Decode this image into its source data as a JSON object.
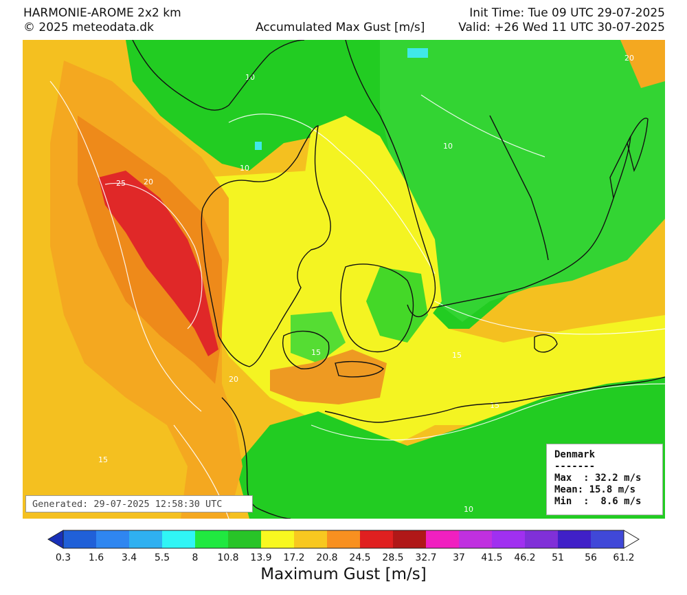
{
  "header": {
    "model": "HARMONIE-AROME 2x2 km",
    "copyright": "© 2025 meteodata.dk",
    "field": "Accumulated Max Gust [m/s]",
    "init_time": "Init Time: Tue 09 UTC 29-07-2025",
    "valid_time": "Valid: +26 Wed 11 UTC 30-07-2025"
  },
  "generated": "Generated: 29-07-2025 12:58:30 UTC",
  "stats": {
    "region": "Denmark",
    "separator": "-------",
    "max": "Max  : 32.2 m/s",
    "mean": "Mean: 15.8 m/s",
    "min": "Min  :  8.6 m/s"
  },
  "contour_labels": [
    "10",
    "15",
    "20",
    "25"
  ],
  "colorbar": {
    "label": "Maximum Gust [m/s]",
    "ticks": [
      "0.3",
      "1.6",
      "3.4",
      "5.5",
      "8",
      "10.8",
      "13.9",
      "17.2",
      "20.8",
      "24.5",
      "28.5",
      "32.7",
      "37",
      "41.5",
      "46.2",
      "51",
      "56",
      "61.2"
    ],
    "colors": [
      "#2060d8",
      "#2f86f0",
      "#2fb0f0",
      "#30f5f5",
      "#20e840",
      "#28c428",
      "#f8f820",
      "#f8c820",
      "#f89020",
      "#e02020",
      "#b01818",
      "#f020c0",
      "#c030e0",
      "#a030f0",
      "#8030d8",
      "#4020c8",
      "#4048d8"
    ],
    "under_color": "#1830b8",
    "over_color": "#ffffff"
  },
  "map_colors": {
    "green": "#22cc22",
    "lightgreen": "#55dd33",
    "yellow": "#f4f422",
    "lightyellow": "#f7f060",
    "orange": "#f4a820",
    "darkorange": "#ee8a1a",
    "red": "#e02828",
    "cyan": "#40e8e8",
    "coast": "#111111"
  }
}
